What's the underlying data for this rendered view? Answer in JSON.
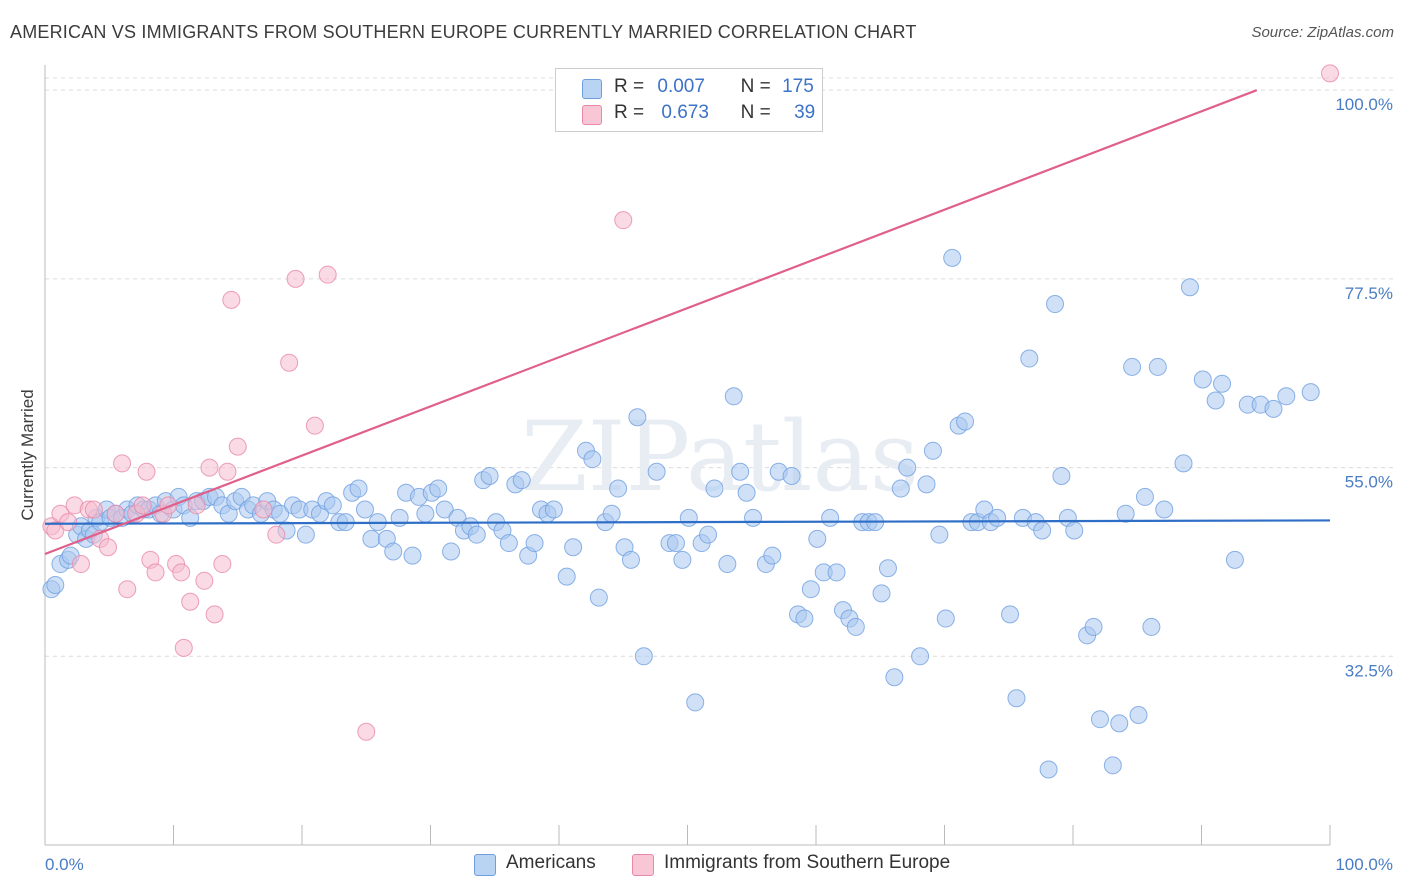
{
  "title": "AMERICAN VS IMMIGRANTS FROM SOUTHERN EUROPE CURRENTLY MARRIED CORRELATION CHART",
  "source": "Source: ZipAtlas.com",
  "watermark": "ZIPatlas",
  "legend": {
    "rows": [
      {
        "r_label": "R =",
        "r_value": "0.007",
        "n_label": "N =",
        "n_value": "175"
      },
      {
        "r_label": "R =",
        "r_value": "0.673",
        "n_label": "N =",
        "n_value": "39"
      }
    ]
  },
  "bottom_legend": [
    "Americans",
    "Immigrants from Southern Europe"
  ],
  "colors": {
    "blue_fill": "#a9c8f0",
    "blue_stroke": "#6f9fe0",
    "blue_line": "#2e6ec6",
    "pink_fill": "#f6bccd",
    "pink_stroke": "#e888a8",
    "pink_line": "#e0608a",
    "axis_text": "#4a7cc4"
  },
  "chart_data": {
    "type": "scatter",
    "title": "AMERICAN VS IMMIGRANTS FROM SOUTHERN EUROPE CURRENTLY MARRIED CORRELATION CHART",
    "xlabel": "",
    "ylabel": "Currently Married",
    "xlim": [
      0,
      100
    ],
    "ylim": [
      10,
      103
    ],
    "x_tick_labels": [
      "0.0%",
      "100.0%"
    ],
    "y_ticks": [
      32.5,
      55.0,
      77.5,
      100.0
    ],
    "y_tick_labels": [
      "32.5%",
      "55.0%",
      "77.5%",
      "100.0%"
    ],
    "grid": "horizontal dashed",
    "series": [
      {
        "name": "Americans",
        "color": "#6f9fe0",
        "trend": {
          "x": [
            0,
            100
          ],
          "y": [
            48.3,
            48.7
          ]
        },
        "points": [
          [
            0.5,
            40.5
          ],
          [
            0.8,
            41.0
          ],
          [
            1.2,
            43.5
          ],
          [
            1.8,
            44.0
          ],
          [
            2.0,
            44.5
          ],
          [
            2.5,
            47.0
          ],
          [
            2.8,
            48.0
          ],
          [
            3.2,
            46.5
          ],
          [
            3.5,
            47.5
          ],
          [
            3.8,
            47.0
          ],
          [
            4.0,
            49.0
          ],
          [
            4.3,
            48.5
          ],
          [
            4.8,
            50.0
          ],
          [
            5.1,
            49.0
          ],
          [
            5.5,
            49.5
          ],
          [
            6.0,
            49.0
          ],
          [
            6.4,
            50.0
          ],
          [
            6.8,
            49.5
          ],
          [
            7.2,
            50.5
          ],
          [
            7.7,
            50.0
          ],
          [
            8.1,
            50.0
          ],
          [
            8.6,
            50.5
          ],
          [
            9.0,
            49.5
          ],
          [
            9.4,
            51.0
          ],
          [
            10.0,
            50.0
          ],
          [
            10.4,
            51.5
          ],
          [
            10.8,
            50.5
          ],
          [
            11.3,
            49.0
          ],
          [
            11.8,
            51.0
          ],
          [
            12.3,
            51.0
          ],
          [
            12.8,
            51.5
          ],
          [
            13.3,
            51.5
          ],
          [
            13.8,
            50.5
          ],
          [
            14.3,
            49.5
          ],
          [
            14.8,
            51.0
          ],
          [
            15.3,
            51.5
          ],
          [
            15.8,
            50.0
          ],
          [
            16.2,
            50.5
          ],
          [
            16.8,
            49.5
          ],
          [
            17.3,
            51.0
          ],
          [
            17.8,
            50.0
          ],
          [
            18.3,
            49.5
          ],
          [
            18.8,
            47.5
          ],
          [
            19.3,
            50.5
          ],
          [
            19.8,
            50.0
          ],
          [
            20.3,
            47.0
          ],
          [
            20.8,
            50.0
          ],
          [
            21.4,
            49.5
          ],
          [
            21.9,
            51.0
          ],
          [
            22.4,
            50.5
          ],
          [
            22.9,
            48.5
          ],
          [
            23.4,
            48.5
          ],
          [
            23.9,
            52.0
          ],
          [
            24.4,
            52.5
          ],
          [
            24.9,
            50.0
          ],
          [
            25.4,
            46.5
          ],
          [
            25.9,
            48.5
          ],
          [
            26.6,
            46.5
          ],
          [
            27.1,
            45.0
          ],
          [
            27.6,
            49.0
          ],
          [
            28.1,
            52.0
          ],
          [
            28.6,
            44.5
          ],
          [
            29.1,
            51.5
          ],
          [
            29.6,
            49.5
          ],
          [
            30.1,
            52.0
          ],
          [
            30.6,
            52.5
          ],
          [
            31.1,
            50.0
          ],
          [
            31.6,
            45.0
          ],
          [
            32.1,
            49.0
          ],
          [
            32.6,
            47.5
          ],
          [
            33.1,
            48.0
          ],
          [
            33.6,
            47.0
          ],
          [
            34.1,
            53.5
          ],
          [
            34.6,
            54.0
          ],
          [
            35.1,
            48.5
          ],
          [
            35.6,
            47.5
          ],
          [
            36.1,
            46.0
          ],
          [
            36.6,
            53.0
          ],
          [
            37.1,
            53.5
          ],
          [
            37.6,
            44.5
          ],
          [
            38.1,
            46.0
          ],
          [
            38.6,
            50.0
          ],
          [
            39.1,
            49.5
          ],
          [
            39.6,
            50.0
          ],
          [
            40.6,
            42.0
          ],
          [
            41.1,
            45.5
          ],
          [
            42.1,
            57.0
          ],
          [
            42.6,
            56.0
          ],
          [
            43.1,
            39.5
          ],
          [
            43.6,
            48.5
          ],
          [
            44.1,
            49.5
          ],
          [
            44.6,
            52.5
          ],
          [
            45.1,
            45.5
          ],
          [
            45.6,
            44.0
          ],
          [
            46.1,
            61.0
          ],
          [
            46.6,
            32.5
          ],
          [
            47.6,
            54.5
          ],
          [
            48.6,
            46.0
          ],
          [
            49.1,
            46.0
          ],
          [
            49.6,
            44.0
          ],
          [
            50.1,
            49.0
          ],
          [
            50.6,
            27.0
          ],
          [
            51.1,
            46.0
          ],
          [
            51.6,
            47.0
          ],
          [
            52.1,
            52.5
          ],
          [
            53.1,
            43.5
          ],
          [
            53.6,
            63.5
          ],
          [
            54.1,
            54.5
          ],
          [
            54.6,
            52.0
          ],
          [
            55.1,
            49.0
          ],
          [
            56.1,
            43.5
          ],
          [
            56.6,
            44.5
          ],
          [
            57.1,
            54.5
          ],
          [
            58.1,
            54.0
          ],
          [
            58.6,
            37.5
          ],
          [
            59.1,
            37.0
          ],
          [
            59.6,
            40.5
          ],
          [
            60.1,
            46.5
          ],
          [
            60.6,
            42.5
          ],
          [
            61.1,
            49.0
          ],
          [
            61.6,
            42.5
          ],
          [
            62.1,
            38.0
          ],
          [
            62.6,
            37.0
          ],
          [
            63.1,
            36.0
          ],
          [
            63.6,
            48.5
          ],
          [
            64.1,
            48.5
          ],
          [
            64.6,
            48.5
          ],
          [
            65.1,
            40.0
          ],
          [
            65.6,
            43.0
          ],
          [
            66.1,
            30.0
          ],
          [
            66.6,
            52.5
          ],
          [
            67.1,
            55.0
          ],
          [
            68.1,
            32.5
          ],
          [
            68.6,
            53.0
          ],
          [
            69.1,
            57.0
          ],
          [
            69.6,
            47.0
          ],
          [
            70.1,
            37.0
          ],
          [
            70.6,
            80.0
          ],
          [
            71.1,
            60.0
          ],
          [
            71.6,
            60.5
          ],
          [
            72.1,
            48.5
          ],
          [
            72.6,
            48.5
          ],
          [
            73.1,
            50.0
          ],
          [
            73.6,
            48.5
          ],
          [
            74.1,
            49.0
          ],
          [
            75.1,
            37.5
          ],
          [
            75.6,
            27.5
          ],
          [
            76.1,
            49.0
          ],
          [
            76.6,
            68.0
          ],
          [
            77.1,
            48.5
          ],
          [
            77.6,
            47.5
          ],
          [
            78.1,
            19.0
          ],
          [
            78.6,
            74.5
          ],
          [
            79.1,
            54.0
          ],
          [
            79.6,
            49.0
          ],
          [
            80.1,
            47.5
          ],
          [
            81.1,
            35.0
          ],
          [
            81.6,
            36.0
          ],
          [
            82.1,
            25.0
          ],
          [
            83.1,
            19.5
          ],
          [
            83.6,
            24.5
          ],
          [
            84.1,
            49.5
          ],
          [
            84.6,
            67.0
          ],
          [
            85.1,
            25.5
          ],
          [
            85.6,
            51.5
          ],
          [
            86.1,
            36.0
          ],
          [
            86.6,
            67.0
          ],
          [
            87.1,
            50.0
          ],
          [
            88.6,
            55.5
          ],
          [
            89.1,
            76.5
          ],
          [
            90.1,
            65.5
          ],
          [
            91.1,
            63.0
          ],
          [
            91.6,
            65.0
          ],
          [
            92.6,
            44.0
          ],
          [
            93.6,
            62.5
          ],
          [
            94.6,
            62.5
          ],
          [
            95.6,
            62.0
          ],
          [
            96.6,
            63.5
          ],
          [
            98.5,
            64.0
          ]
        ]
      },
      {
        "name": "Immigrants from Southern Europe",
        "color": "#e888a8",
        "trend": {
          "x": [
            0,
            94.3
          ],
          "y": [
            44.7,
            100.0
          ]
        },
        "points": [
          [
            0.5,
            48.0
          ],
          [
            0.8,
            47.5
          ],
          [
            1.2,
            49.5
          ],
          [
            1.8,
            48.5
          ],
          [
            2.3,
            50.5
          ],
          [
            2.8,
            43.5
          ],
          [
            3.4,
            50.0
          ],
          [
            3.8,
            50.0
          ],
          [
            4.3,
            46.5
          ],
          [
            4.9,
            45.5
          ],
          [
            5.5,
            49.5
          ],
          [
            6.0,
            55.5
          ],
          [
            6.4,
            40.5
          ],
          [
            7.1,
            49.5
          ],
          [
            7.6,
            50.5
          ],
          [
            7.9,
            54.5
          ],
          [
            8.2,
            44.0
          ],
          [
            8.6,
            42.5
          ],
          [
            9.2,
            49.5
          ],
          [
            9.6,
            50.5
          ],
          [
            10.2,
            43.5
          ],
          [
            10.6,
            42.5
          ],
          [
            10.8,
            33.5
          ],
          [
            11.3,
            39.0
          ],
          [
            11.8,
            50.5
          ],
          [
            12.4,
            41.5
          ],
          [
            12.8,
            55.0
          ],
          [
            13.2,
            37.5
          ],
          [
            13.8,
            43.5
          ],
          [
            14.2,
            54.5
          ],
          [
            14.5,
            75.0
          ],
          [
            15.0,
            57.5
          ],
          [
            17.0,
            50.0
          ],
          [
            18.0,
            47.0
          ],
          [
            19.0,
            67.5
          ],
          [
            19.5,
            77.5
          ],
          [
            21.0,
            60.0
          ],
          [
            22.0,
            78.0
          ],
          [
            25.0,
            23.5
          ],
          [
            45.0,
            84.5
          ],
          [
            100.0,
            102.0
          ]
        ]
      }
    ]
  }
}
